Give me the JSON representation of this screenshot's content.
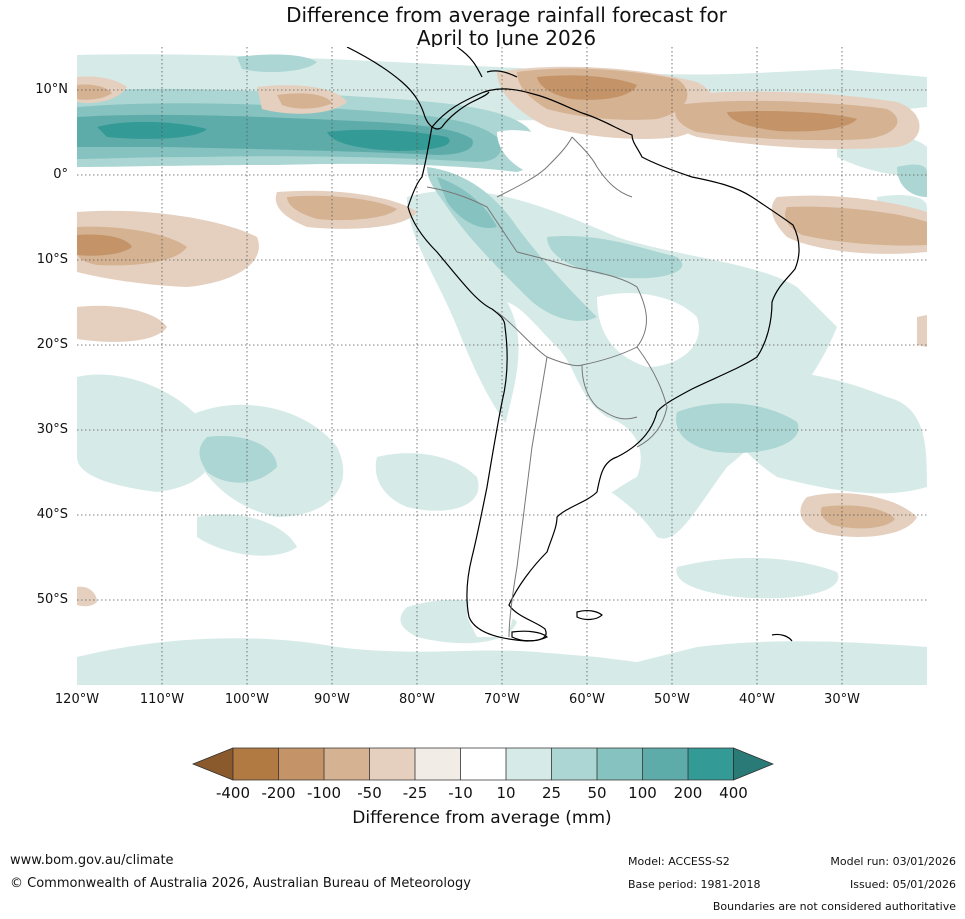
{
  "title": {
    "line1": "Difference from average rainfall forecast for",
    "line2": "April to June 2026"
  },
  "map": {
    "lat_ticks": [
      "10°N",
      "0°",
      "10°S",
      "20°S",
      "30°S",
      "40°S",
      "50°S"
    ],
    "lon_ticks": [
      "120°W",
      "110°W",
      "100°W",
      "90°W",
      "80°W",
      "70°W",
      "60°W",
      "50°W",
      "40°W",
      "30°W"
    ]
  },
  "colorbar": {
    "labels": [
      "-400",
      "-200",
      "-100",
      "-50",
      "-25",
      "-10",
      "10",
      "25",
      "50",
      "100",
      "200",
      "400"
    ],
    "colors": [
      "#8a5a2c",
      "#b07a42",
      "#c49468",
      "#d4b292",
      "#e5d0bf",
      "#f2ece6",
      "#ffffff",
      "#d6ebe8",
      "#acd6d3",
      "#86c3c0",
      "#5eacaa",
      "#349a96",
      "#2a7a77"
    ],
    "title": "Difference from average (mm)"
  },
  "footer": {
    "website": "www.bom.gov.au/climate",
    "copyright": "© Commonwealth of Australia 2026, Australian Bureau of Meteorology",
    "model": "Model: ACCESS-S2",
    "base_period": "Base period: 1981-2018",
    "model_run": "Model run: 03/01/2026",
    "issued": "Issued: 05/01/2026",
    "boundaries": "Boundaries are not considered authoritative"
  }
}
